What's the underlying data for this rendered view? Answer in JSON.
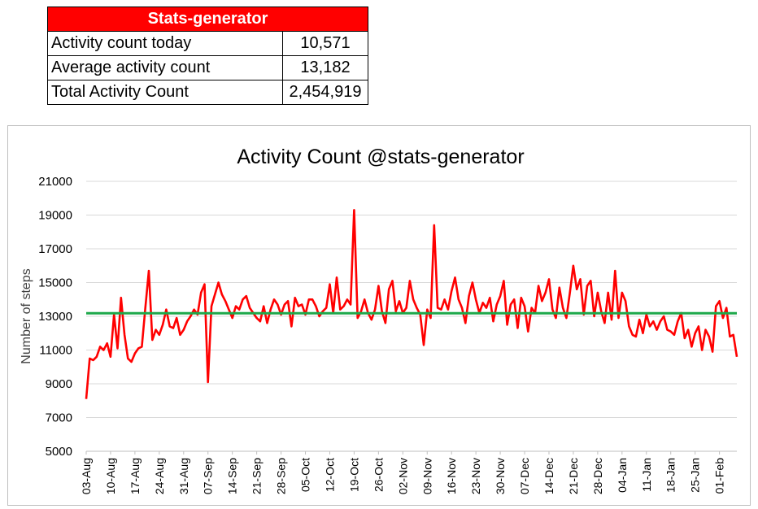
{
  "stats_table": {
    "header": "Stats-generator",
    "rows": [
      {
        "label": "Activity count today",
        "value": "10,571"
      },
      {
        "label": "Average activity count",
        "value": "13,182"
      },
      {
        "label": "Total Activity Count",
        "value": "2,454,919"
      }
    ]
  },
  "colors": {
    "header_bg": "#ff0000",
    "series": "#ff0000",
    "average": "#1ea84a",
    "grid": "#d9d9d9"
  },
  "chart_data": {
    "type": "line",
    "title": "Activity Count @stats-generator",
    "xlabel": "",
    "ylabel": "Number of steps",
    "ylim": [
      5000,
      21000
    ],
    "yticks": [
      5000,
      7000,
      9000,
      11000,
      13000,
      15000,
      17000,
      19000,
      21000
    ],
    "grid": true,
    "legend": "none",
    "x_tick_labels": [
      "03-Aug",
      "10-Aug",
      "17-Aug",
      "24-Aug",
      "31-Aug",
      "07-Sep",
      "14-Sep",
      "21-Sep",
      "28-Sep",
      "05-Oct",
      "12-Oct",
      "19-Oct",
      "26-Oct",
      "02-Nov",
      "09-Nov",
      "16-Nov",
      "23-Nov",
      "30-Nov",
      "07-Dec",
      "14-Dec",
      "21-Dec",
      "28-Dec",
      "04-Jan",
      "11-Jan",
      "18-Jan",
      "25-Jan",
      "01-Feb"
    ],
    "average_value": 13182,
    "series": [
      {
        "values": [
          8100,
          10500,
          10400,
          10600,
          11200,
          11000,
          11400,
          10600,
          13100,
          11100,
          14100,
          11900,
          10500,
          10300,
          10800,
          11100,
          11200,
          13500,
          15700,
          11600,
          12200,
          11900,
          12500,
          13400,
          12400,
          12300,
          12900,
          11900,
          12200,
          12700,
          13000,
          13400,
          13100,
          14400,
          14900,
          9100,
          13600,
          14300,
          15000,
          14300,
          13900,
          13400,
          12900,
          13600,
          13400,
          14000,
          14200,
          13500,
          13200,
          12900,
          12700,
          13600,
          12600,
          13400,
          14000,
          13700,
          13100,
          13700,
          13900,
          12400,
          14100,
          13600,
          13700,
          13100,
          14000,
          14000,
          13600,
          13000,
          13300,
          13500,
          14900,
          13200,
          15300,
          13400,
          13600,
          14000,
          13700,
          19300,
          12900,
          13300,
          14000,
          13200,
          12800,
          13400,
          14800,
          13300,
          12600,
          14600,
          15100,
          13300,
          13900,
          13200,
          13500,
          15100,
          14000,
          13500,
          13100,
          11300,
          13400,
          12900,
          18400,
          13500,
          13400,
          14000,
          13400,
          14500,
          15300,
          14000,
          13500,
          12600,
          14200,
          15000,
          14000,
          13200,
          13800,
          13500,
          14100,
          12700,
          13700,
          14200,
          15100,
          12500,
          13700,
          14000,
          12300,
          14100,
          13600,
          12100,
          13500,
          13200,
          14800,
          13900,
          14400,
          15200,
          13400,
          12900,
          14700,
          13500,
          12900,
          14400,
          16000,
          14600,
          15200,
          13100,
          14800,
          15100,
          13000,
          14400,
          13300,
          12600,
          14400,
          12800,
          15700,
          12900,
          14400,
          13900,
          12400,
          11900,
          11800,
          12800,
          12000,
          13100,
          12400,
          12700,
          12200,
          12700,
          13000,
          12200,
          12100,
          11900,
          12700,
          13200,
          11700,
          12200,
          11200,
          12000,
          12400,
          11000,
          12200,
          11800,
          10900,
          13600,
          13900,
          12900,
          13500,
          11800,
          11900,
          10600
        ]
      }
    ]
  }
}
